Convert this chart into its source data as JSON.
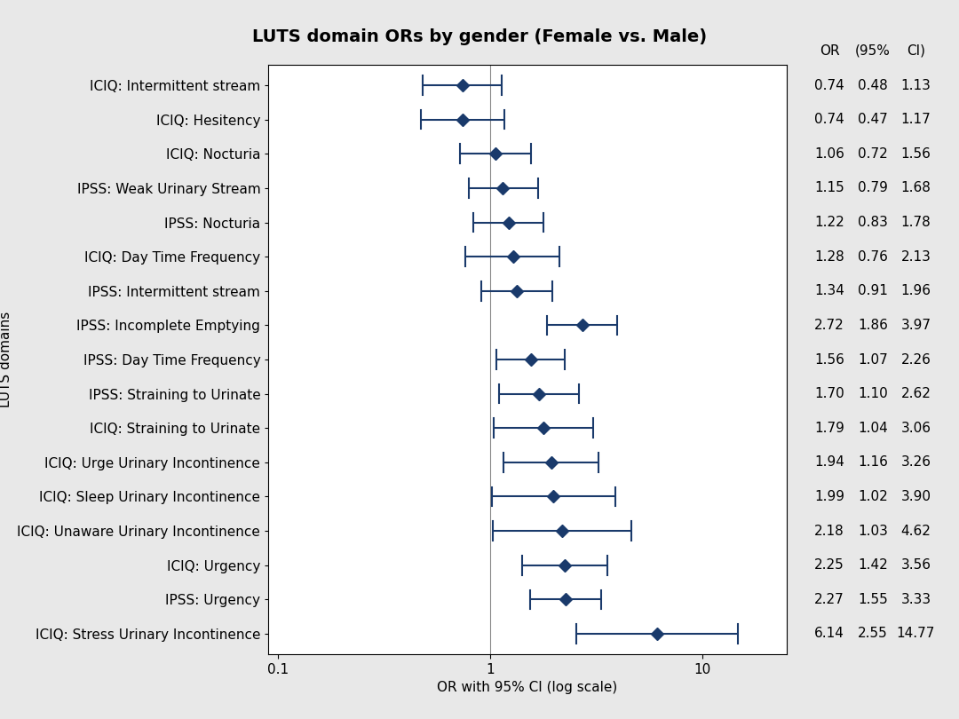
{
  "title": "LUTS domain ORs by gender (Female vs. Male)",
  "xlabel": "OR with 95% CI (log scale)",
  "ylabel": "LUTS domains",
  "categories": [
    "ICIQ: Intermittent stream",
    "ICIQ: Hesitency",
    "ICIQ: Nocturia",
    "IPSS: Weak Urinary Stream",
    "IPSS: Nocturia",
    "ICIQ: Day Time Frequency",
    "IPSS: Intermittent stream",
    "IPSS: Incomplete Emptying",
    "IPSS: Day Time Frequency",
    "IPSS: Straining to Urinate",
    "ICIQ: Straining to Urinate",
    "ICIQ: Urge Urinary Incontinence",
    "ICIQ: Sleep Urinary Incontinence",
    "ICIQ: Unaware Urinary Incontinence",
    "ICIQ: Urgency",
    "IPSS: Urgency",
    "ICIQ: Stress Urinary Incontinence"
  ],
  "OR": [
    0.74,
    0.74,
    1.06,
    1.15,
    1.22,
    1.28,
    1.34,
    2.72,
    1.56,
    1.7,
    1.79,
    1.94,
    1.99,
    2.18,
    2.25,
    2.27,
    6.14
  ],
  "CI_low": [
    0.48,
    0.47,
    0.72,
    0.79,
    0.83,
    0.76,
    0.91,
    1.86,
    1.07,
    1.1,
    1.04,
    1.16,
    1.02,
    1.03,
    1.42,
    1.55,
    2.55
  ],
  "CI_high": [
    1.13,
    1.17,
    1.56,
    1.68,
    1.78,
    2.13,
    1.96,
    3.97,
    2.26,
    2.62,
    3.06,
    3.26,
    3.9,
    4.62,
    3.56,
    3.33,
    14.77
  ],
  "marker_color": "#1a3a6b",
  "line_color": "#1a3a6b",
  "ref_line_color": "#888888",
  "background_color": "#e8e8e8",
  "plot_bg_color": "#ffffff",
  "title_fontsize": 14,
  "label_fontsize": 11,
  "tick_fontsize": 11,
  "annotation_fontsize": 11,
  "xlim_low": 0.09,
  "xlim_high": 25
}
